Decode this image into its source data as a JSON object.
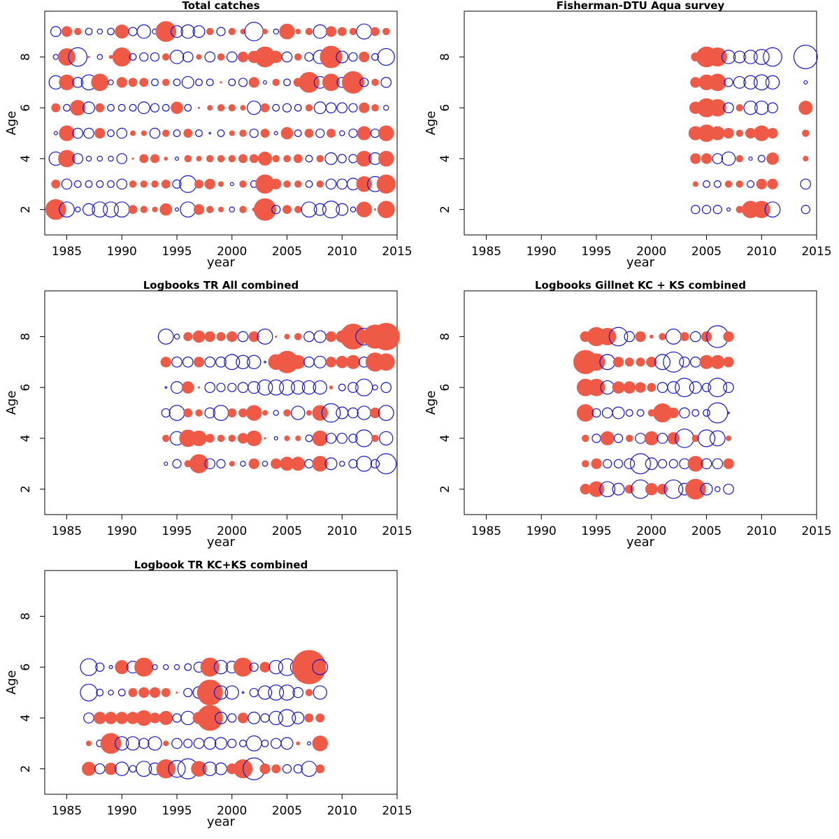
{
  "colors": {
    "positive": "#ee5a45",
    "negative": "#1414d8",
    "frame": "#000000"
  },
  "chart_data": [
    {
      "type": "scatter",
      "subtype": "bubble-residuals",
      "title": "Total catches",
      "xlabel": "year",
      "ylabel": "Age",
      "xlim": [
        1983,
        2015
      ],
      "ylim": [
        1,
        9.8
      ],
      "xticks": [
        1985,
        1990,
        1995,
        2000,
        2005,
        2010,
        2015
      ],
      "yticks": [
        2,
        4,
        6,
        8
      ],
      "years": [
        1984,
        1985,
        1986,
        1987,
        1988,
        1989,
        1990,
        1991,
        1992,
        1993,
        1994,
        1995,
        1996,
        1997,
        1998,
        1999,
        2000,
        2001,
        2002,
        2003,
        2004,
        2005,
        2006,
        2007,
        2008,
        2009,
        2010,
        2011,
        2012,
        2013,
        2014
      ],
      "ages": [
        2,
        3,
        4,
        5,
        6,
        7,
        8,
        9
      ],
      "residuals": {
        "2": [
          1.2,
          -0.9,
          -0.3,
          -0.7,
          -0.9,
          -0.9,
          -0.9,
          0.5,
          0.4,
          0.3,
          0.7,
          -0.2,
          -0.9,
          0.6,
          0.4,
          0.3,
          -0.3,
          0.4,
          0.2,
          1.3,
          -0.5,
          0.5,
          0.4,
          -0.9,
          -0.7,
          -1.0,
          -0.7,
          -0.3,
          0.9,
          0.1,
          1.0
        ],
        "3": [
          0.5,
          -0.6,
          -0.4,
          -0.4,
          -0.4,
          -0.4,
          -0.6,
          0.4,
          0.4,
          0.4,
          0.5,
          -0.5,
          -1.0,
          0.5,
          0.6,
          0.3,
          -0.2,
          0.4,
          -0.4,
          1.1,
          0.6,
          0.4,
          0.4,
          -0.4,
          0.4,
          -0.6,
          -0.6,
          -0.7,
          0.9,
          -0.9,
          1.1
        ],
        "4": [
          -0.8,
          1.0,
          -0.6,
          -0.3,
          -0.3,
          -0.3,
          -0.6,
          0.1,
          0.5,
          0.5,
          0.2,
          -0.2,
          0.4,
          0.3,
          0.4,
          0.4,
          0.4,
          0.5,
          0.5,
          0.8,
          0.4,
          0.4,
          0.5,
          -0.4,
          0.4,
          -0.7,
          -0.5,
          -0.5,
          0.9,
          -0.7,
          0.9
        ],
        "5": [
          -0.2,
          0.9,
          -0.6,
          -0.6,
          0.6,
          -0.4,
          -0.6,
          0.3,
          0.3,
          -0.6,
          0.4,
          -0.4,
          0.5,
          -0.4,
          -0.1,
          -0.4,
          0.3,
          0.4,
          -0.5,
          0.5,
          -0.2,
          0.7,
          -0.4,
          0.5,
          -0.5,
          0.5,
          -0.3,
          -0.5,
          0.8,
          -0.5,
          0.9
        ],
        "6": [
          0.5,
          -0.4,
          0.9,
          -0.7,
          0.5,
          -0.4,
          -0.4,
          -0.4,
          -0.7,
          -0.5,
          -0.4,
          0.7,
          -0.4,
          0.1,
          0.3,
          0.4,
          0.4,
          0.3,
          -0.8,
          0.5,
          -0.4,
          -0.5,
          -0.4,
          0.4,
          -0.7,
          -0.6,
          -0.6,
          -0.5,
          0.6,
          0.4,
          -0.3
        ],
        "7": [
          -0.8,
          0.9,
          -0.6,
          -0.9,
          1.0,
          -0.3,
          0.6,
          0.5,
          0.5,
          -0.4,
          0.4,
          -0.4,
          -0.7,
          -0.4,
          -0.4,
          0.0,
          -0.4,
          -0.5,
          0.6,
          -0.2,
          0.4,
          -0.4,
          0.5,
          1.2,
          -0.7,
          1.0,
          -0.6,
          1.3,
          -0.5,
          0.4,
          -0.6
        ],
        "8": [
          -0.3,
          1.0,
          -1.1,
          0.1,
          -0.3,
          0.2,
          1.1,
          -0.4,
          -0.5,
          -0.5,
          0.4,
          -0.8,
          -0.6,
          0.3,
          -0.6,
          0.4,
          -0.6,
          0.6,
          0.7,
          1.2,
          0.7,
          -0.6,
          0.4,
          -0.5,
          -0.8,
          1.3,
          -0.7,
          -0.5,
          0.6,
          -0.4,
          -1.0
        ],
        "9": [
          -0.6,
          0.6,
          0.4,
          -0.4,
          -0.3,
          -0.4,
          0.8,
          -0.5,
          -0.8,
          -0.3,
          1.2,
          -0.7,
          -0.8,
          -0.7,
          0.4,
          -0.5,
          0.4,
          0.3,
          -1.1,
          0.3,
          -0.3,
          0.9,
          0.3,
          0.4,
          -0.8,
          0.6,
          0.5,
          0.4,
          -0.9,
          0.5,
          0.4
        ]
      }
    },
    {
      "type": "scatter",
      "subtype": "bubble-residuals",
      "title": "Fisherman-DTU Aqua survey",
      "xlabel": "year",
      "ylabel": "Age",
      "xlim": [
        1983,
        2015
      ],
      "ylim": [
        1,
        9.8
      ],
      "xticks": [
        1985,
        1990,
        1995,
        2000,
        2005,
        2010,
        2015
      ],
      "yticks": [
        2,
        4,
        6,
        8
      ],
      "years": [
        2004,
        2005,
        2006,
        2007,
        2008,
        2009,
        2010,
        2011,
        2014
      ],
      "ages": [
        2,
        3,
        4,
        5,
        6,
        7,
        8
      ],
      "residuals": {
        "2": [
          -0.5,
          -0.5,
          -0.5,
          -0.2,
          0.4,
          1.0,
          1.0,
          -0.9,
          -0.5
        ],
        "3": [
          0.3,
          -0.4,
          -0.4,
          0.4,
          0.4,
          -0.4,
          0.6,
          0.6,
          -0.6
        ],
        "4": [
          0.6,
          0.6,
          -0.6,
          -0.8,
          0.4,
          -0.2,
          -0.4,
          0.7,
          0.3
        ],
        "5": [
          0.8,
          1.0,
          0.8,
          0.6,
          0.4,
          0.6,
          0.9,
          0.6,
          0.4
        ],
        "6": [
          0.7,
          1.1,
          1.0,
          -0.6,
          0.4,
          -0.8,
          -0.8,
          -0.6,
          0.8
        ],
        "7": [
          0.6,
          0.9,
          1.0,
          -0.5,
          -0.7,
          -0.8,
          -0.9,
          -0.8,
          -0.2
        ],
        "8": [
          0.5,
          1.2,
          1.1,
          -0.8,
          -0.7,
          -0.8,
          -0.9,
          -1.1,
          -1.4
        ]
      }
    },
    {
      "type": "scatter",
      "subtype": "bubble-residuals",
      "title": "Logbooks TR All combined",
      "xlabel": "year",
      "ylabel": "Age",
      "xlim": [
        1983,
        2015
      ],
      "ylim": [
        1,
        9.8
      ],
      "xticks": [
        1985,
        1990,
        1995,
        2000,
        2005,
        2010,
        2015
      ],
      "yticks": [
        2,
        4,
        6,
        8
      ],
      "years": [
        1994,
        1995,
        1996,
        1997,
        1998,
        1999,
        2000,
        2001,
        2002,
        2003,
        2004,
        2005,
        2006,
        2007,
        2008,
        2009,
        2010,
        2011,
        2012,
        2013,
        2014
      ],
      "ages": [
        3,
        4,
        5,
        6,
        7,
        8
      ],
      "residuals": {
        "3": [
          -0.2,
          -0.5,
          0.4,
          1.1,
          -0.6,
          -0.5,
          0.3,
          -0.3,
          0.6,
          -0.3,
          0.6,
          0.8,
          0.8,
          -0.5,
          0.9,
          -0.7,
          -0.3,
          -0.5,
          -0.9,
          -0.5,
          -1.2
        ],
        "4": [
          0.4,
          -0.8,
          1.0,
          0.9,
          0.5,
          0.4,
          0.4,
          0.6,
          0.9,
          0.1,
          -0.2,
          0.3,
          0.3,
          -0.4,
          0.9,
          -0.6,
          -0.6,
          -0.5,
          -1.0,
          0.4,
          -0.8
        ],
        "5": [
          -0.5,
          -0.9,
          0.5,
          0.4,
          -0.6,
          -0.9,
          0.5,
          0.5,
          0.9,
          0.3,
          -0.3,
          0.4,
          -0.8,
          0.3,
          0.9,
          -1.1,
          -0.7,
          -0.6,
          -0.8,
          0.6,
          -0.9
        ],
        "6": [
          -0.1,
          -0.7,
          0.7,
          0.1,
          -0.6,
          -0.5,
          -0.5,
          -0.6,
          -0.7,
          -0.9,
          -0.9,
          -0.9,
          -0.8,
          -0.8,
          -0.8,
          0.2,
          -0.4,
          -0.6,
          -1.0,
          -0.3,
          -0.6
        ],
        "7": [
          0.6,
          -0.6,
          -0.6,
          0.6,
          -0.6,
          -0.6,
          -0.9,
          -0.8,
          -0.8,
          -0.1,
          0.9,
          1.3,
          0.8,
          -0.6,
          -0.7,
          0.6,
          0.7,
          0.8,
          -0.6,
          1.1,
          1.0
        ],
        "8": [
          -0.9,
          -0.3,
          0.5,
          0.7,
          0.6,
          0.5,
          0.6,
          -0.6,
          0.6,
          -0.9,
          0.1,
          0.3,
          0.4,
          -0.6,
          -0.7,
          0.6,
          0.7,
          1.5,
          -1.0,
          1.4,
          1.6
        ]
      }
    },
    {
      "type": "scatter",
      "subtype": "bubble-residuals",
      "title": "Logbooks Gillnet KC + KS combined",
      "xlabel": "year",
      "ylabel": "Age",
      "xlim": [
        1983,
        2015
      ],
      "ylim": [
        1,
        9.8
      ],
      "xticks": [
        1985,
        1990,
        1995,
        2000,
        2005,
        2010,
        2015
      ],
      "yticks": [
        2,
        4,
        6,
        8
      ],
      "years": [
        1994,
        1995,
        1996,
        1997,
        1998,
        1999,
        2000,
        2001,
        2002,
        2003,
        2004,
        2005,
        2006,
        2007
      ],
      "ages": [
        2,
        3,
        4,
        5,
        6,
        7,
        8
      ],
      "residuals": {
        "2": [
          0.6,
          0.9,
          -0.9,
          -0.7,
          0.5,
          -1.1,
          0.7,
          0.6,
          -1.1,
          -0.7,
          1.2,
          -0.7,
          -0.3,
          -0.6
        ],
        "3": [
          0.4,
          0.6,
          -0.5,
          -0.5,
          -0.6,
          -1.2,
          -0.7,
          -0.5,
          -0.5,
          -0.6,
          0.9,
          -0.6,
          -0.6,
          0.6
        ],
        "4": [
          0.4,
          -0.5,
          0.8,
          -0.5,
          0.4,
          -0.6,
          0.8,
          -0.6,
          0.7,
          -1.1,
          0.4,
          -1.0,
          -0.9,
          0.3
        ],
        "5": [
          1.0,
          -0.5,
          -0.6,
          -0.7,
          -0.4,
          -0.4,
          0.4,
          1.1,
          0.6,
          -0.6,
          -0.4,
          -0.4,
          -1.2,
          -0.1
        ],
        "6": [
          1.0,
          1.0,
          -0.8,
          0.7,
          0.7,
          0.6,
          0.5,
          -0.6,
          -0.7,
          -1.1,
          -0.7,
          -0.5,
          -1.1,
          -0.6
        ],
        "7": [
          1.4,
          1.0,
          -0.9,
          0.6,
          0.5,
          0.5,
          0.6,
          -0.9,
          -1.2,
          -0.6,
          -0.6,
          0.8,
          0.8,
          0.6
        ],
        "8": [
          0.6,
          1.1,
          1.0,
          -1.1,
          -0.6,
          0.6,
          0.2,
          0.4,
          -0.9,
          0.5,
          -0.6,
          0.6,
          -1.3,
          0.6
        ]
      }
    },
    {
      "type": "scatter",
      "subtype": "bubble-residuals",
      "title": "Logbook TR KC+KS combined",
      "xlabel": "year",
      "ylabel": "Age",
      "xlim": [
        1983,
        2015
      ],
      "ylim": [
        1,
        9.8
      ],
      "xticks": [
        1985,
        1990,
        1995,
        2000,
        2005,
        2010,
        2015
      ],
      "yticks": [
        2,
        4,
        6,
        8
      ],
      "years": [
        1987,
        1988,
        1989,
        1990,
        1991,
        1992,
        1993,
        1994,
        1995,
        1996,
        1997,
        1998,
        1999,
        2000,
        2001,
        2002,
        2003,
        2004,
        2005,
        2006,
        2007,
        2008
      ],
      "ages": [
        2,
        3,
        4,
        5,
        6
      ],
      "residuals": {
        "2": [
          0.8,
          -0.6,
          0.7,
          -0.8,
          -0.4,
          -0.9,
          -0.7,
          1.1,
          -1.0,
          -1.2,
          0.9,
          -0.8,
          -0.7,
          0.6,
          1.1,
          -1.3,
          0.6,
          0.5,
          -0.5,
          -0.5,
          -0.9,
          0.5
        ],
        "3": [
          0.3,
          -0.4,
          1.2,
          -0.8,
          -0.8,
          -0.6,
          -0.8,
          0.3,
          -0.6,
          -0.5,
          -0.6,
          -0.7,
          -0.7,
          -0.5,
          -0.4,
          -0.9,
          -0.4,
          -0.6,
          -0.7,
          0.2,
          -0.2,
          0.9
        ],
        "4": [
          -0.6,
          0.7,
          0.7,
          0.7,
          0.7,
          0.9,
          0.6,
          0.8,
          -0.5,
          -0.8,
          0.7,
          1.5,
          -0.7,
          -0.5,
          0.6,
          -0.7,
          -0.5,
          -0.8,
          -1.0,
          -0.7,
          0.5,
          0.5
        ],
        "5": [
          -1.0,
          -0.4,
          -0.3,
          -0.4,
          0.5,
          0.6,
          0.6,
          0.5,
          0.0,
          -0.5,
          -0.7,
          1.5,
          -0.8,
          -0.8,
          -0.1,
          -0.5,
          -0.8,
          -0.9,
          -0.9,
          -0.6,
          0.4,
          -0.8
        ],
        "6": [
          -1.0,
          -0.5,
          -0.2,
          0.8,
          -0.7,
          1.1,
          -0.3,
          -0.3,
          -0.3,
          -0.4,
          -0.6,
          1.1,
          -0.8,
          -0.7,
          1.1,
          -0.5,
          0.6,
          -0.8,
          -1.0,
          -0.9,
          2.0,
          -0.9
        ]
      }
    }
  ]
}
